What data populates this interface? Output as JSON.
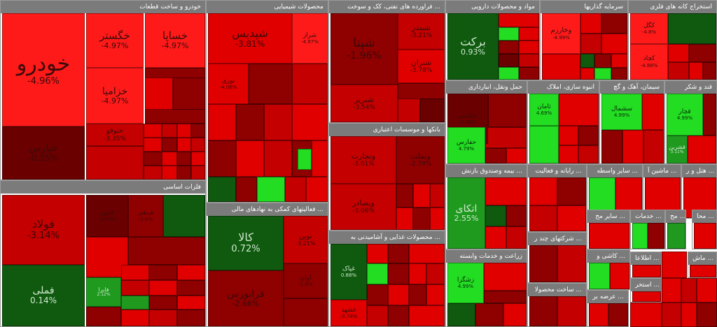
{
  "palette": {
    "deep_red": "#c40000",
    "red": "#e00000",
    "bright_red": "#ff1a1a",
    "dark_red": "#8f0000",
    "darkest_red": "#6a0000",
    "deep_green": "#0f5a0f",
    "green": "#1f9a1f",
    "bright_green": "#22dd22",
    "header_grey": "#7b7b7b"
  },
  "chart_data": {
    "type": "treemap",
    "sectors": [
      {
        "name": "خودرو و ساخت قطعات",
        "tiles": [
          {
            "name": "خودرو",
            "change": "-4.96%",
            "value": -4.96
          },
          {
            "name": "خگستر",
            "change": "-4.97%",
            "value": -4.97
          },
          {
            "name": "خساپا",
            "change": "-4.97%",
            "value": -4.97
          },
          {
            "name": "خزامیا",
            "change": "-4.97%",
            "value": -4.97
          },
          {
            "name": "خپارس",
            "change": "-0.55%",
            "value": -0.55
          },
          {
            "name": "ختوقو",
            "change": "-3.35%",
            "value": -3.35
          }
        ]
      },
      {
        "name": "محصولات شیمیایی",
        "tiles": [
          {
            "name": "شپدیس",
            "change": "-3.81%",
            "value": -3.81
          },
          {
            "name": "شراز",
            "change": "-4.97%",
            "value": -4.97
          },
          {
            "name": "نوری",
            "change": "-4.06%",
            "value": -4.06
          }
        ]
      },
      {
        "name": "فراورده های نفتی، کک و سوخت ...",
        "tiles": [
          {
            "name": "شپنا",
            "change": "-1.96%",
            "value": -1.96
          },
          {
            "name": "شبندر",
            "change": "-3.21%",
            "value": -3.21
          },
          {
            "name": "شتران",
            "change": "-3.78%",
            "value": -3.78
          },
          {
            "name": "شبریز",
            "change": "-3.54%",
            "value": -3.54
          }
        ]
      },
      {
        "name": "مواد و محصولات دارویی",
        "tiles": [
          {
            "name": "برکت",
            "change": "0.93%",
            "value": 0.93
          }
        ]
      },
      {
        "name": "سرمایه گذاریها",
        "tiles": [
          {
            "name": "وخارزم",
            "change": "-4.99%",
            "value": -4.99
          }
        ]
      },
      {
        "name": "استخراج کانه های فلزی",
        "tiles": [
          {
            "name": "کگل",
            "change": "-4.8%",
            "value": -4.8
          },
          {
            "name": "کچاد",
            "change": "-4.88%",
            "value": -4.88
          }
        ]
      },
      {
        "name": "حمل ونقل، انبارداری",
        "tiles": [
          {
            "name": "حکشتی",
            "change": "-1.36%",
            "value": -1.36
          },
          {
            "name": "حفارس",
            "change": "4.79%",
            "value": 4.79
          }
        ]
      },
      {
        "name": "انبوه سازی، املاک",
        "tiles": [
          {
            "name": "ثامان",
            "change": "4.69%",
            "value": 4.69
          }
        ]
      },
      {
        "name": "سیمان، آهک و گچ",
        "tiles": [
          {
            "name": "سشمال",
            "change": "4.99%",
            "value": 4.99
          }
        ]
      },
      {
        "name": "قند و شکر",
        "tiles": [
          {
            "name": "قچار",
            "change": "4.99%",
            "value": 4.99
          },
          {
            "name": "قشرین",
            "change": "3.11%",
            "value": 3.11
          }
        ]
      },
      {
        "name": "فلزات اساسی",
        "tiles": [
          {
            "name": "فولاد",
            "change": "-3.14%",
            "value": -3.14
          },
          {
            "name": "فملی",
            "change": "0.14%",
            "value": 0.14
          },
          {
            "name": "فخوز",
            "change": "-0.03%",
            "value": -0.03
          },
          {
            "name": "فباهنر",
            "change": "-2.6%",
            "value": -2.6
          },
          {
            "name": "فایرا",
            "change": "2.12%",
            "value": 2.12
          }
        ]
      },
      {
        "name": "فعالیتهای کمکی به نهادهای مالی ...",
        "tiles": [
          {
            "name": "کالا",
            "change": "0.72%",
            "value": 0.72
          },
          {
            "name": "فرابورس",
            "change": "-2.66%",
            "value": -2.66
          },
          {
            "name": "نوین",
            "change": "-3.21%",
            "value": -3.21
          },
          {
            "name": "اوان",
            "change": "-1.8%",
            "value": -1.8
          }
        ]
      },
      {
        "name": "بانکها و موسسات اعتباری",
        "tiles": [
          {
            "name": "وتجارت",
            "change": "-3.01%",
            "value": -3.01
          },
          {
            "name": "وبملت",
            "change": "-2.78%",
            "value": -2.78
          },
          {
            "name": "وبصادر",
            "change": "-3.06%",
            "value": -3.06
          }
        ]
      },
      {
        "name": "محصولات غذایی و آشامیدنی به ...",
        "tiles": [
          {
            "name": "غپاک",
            "change": "0.88%",
            "value": 0.88
          },
          {
            "name": "غشهد",
            "change": "-3.74%",
            "value": -3.74
          }
        ]
      },
      {
        "name": "بیمه وصندوق بازنش ...",
        "tiles": [
          {
            "name": "اتکای",
            "change": "2.55%",
            "value": 2.55
          }
        ]
      },
      {
        "name": "زراعت و خدمات وابسته",
        "tiles": [
          {
            "name": "زشگزا",
            "change": "4.99%",
            "value": 4.99
          }
        ]
      },
      {
        "name": "رایانه و فعالیت ...",
        "tiles": []
      },
      {
        "name": "سایر واسطه ...",
        "tiles": []
      },
      {
        "name": "ماشین آ ...",
        "tiles": []
      },
      {
        "name": "هتل و ر ...",
        "tiles": []
      },
      {
        "name": "شرکتهای چند ر ...",
        "tiles": []
      },
      {
        "name": "ساخت محصولا ...",
        "tiles": []
      },
      {
        "name": "سایر مح ...",
        "tiles": []
      },
      {
        "name": "خدمات ...",
        "tiles": []
      },
      {
        "name": "مح ...",
        "tiles": []
      },
      {
        "name": "محا ...",
        "tiles": []
      },
      {
        "name": "کاشی و ...",
        "tiles": []
      },
      {
        "name": "اطلاعا ...",
        "tiles": []
      },
      {
        "name": "عرضه بر ...",
        "tiles": []
      },
      {
        "name": "استخر ...",
        "tiles": []
      },
      {
        "name": "ماش ...",
        "tiles": []
      }
    ]
  }
}
